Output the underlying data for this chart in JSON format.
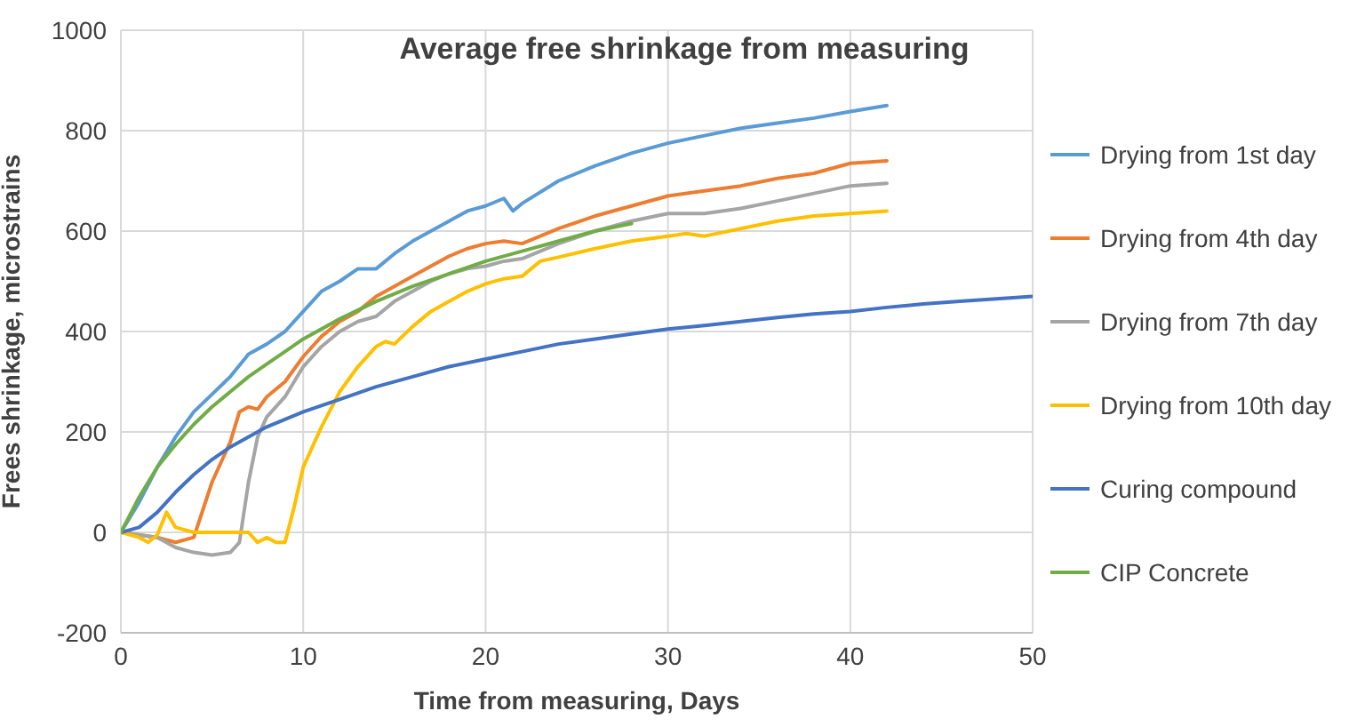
{
  "chart_data": {
    "type": "line",
    "title": "Average free shrinkage from measuring",
    "xlabel": "Time from measuring, Days",
    "ylabel": "Frees shrinkage, microstrains",
    "xlim": [
      0,
      50
    ],
    "xticks": [
      0,
      10,
      20,
      30,
      40,
      50
    ],
    "ylim": [
      -200,
      1000
    ],
    "yticks": [
      -200,
      0,
      200,
      400,
      600,
      800,
      1000
    ],
    "grid": true,
    "legend": "right",
    "marker": "none",
    "line_style": "solid",
    "series": [
      {
        "name": "Drying from 1st day",
        "color": "#5b9bd5",
        "x": [
          0,
          1,
          2,
          3,
          4,
          5,
          6,
          7,
          8,
          9,
          10,
          11,
          12,
          13,
          14,
          15,
          16,
          17,
          18,
          19,
          20,
          21,
          21.5,
          22,
          24,
          26,
          28,
          30,
          32,
          34,
          36,
          38,
          40,
          42
        ],
        "values": [
          0,
          60,
          130,
          190,
          240,
          275,
          310,
          355,
          375,
          400,
          440,
          480,
          500,
          525,
          525,
          555,
          580,
          600,
          620,
          640,
          650,
          665,
          640,
          655,
          700,
          730,
          755,
          775,
          790,
          805,
          815,
          825,
          838,
          850
        ]
      },
      {
        "name": "Drying from 4th day",
        "color": "#ed7d31",
        "x": [
          0,
          2,
          3,
          4,
          5,
          6,
          6.5,
          7,
          7.5,
          8,
          9,
          10,
          11,
          12,
          13,
          14,
          15,
          16,
          17,
          18,
          19,
          20,
          21,
          22,
          24,
          26,
          28,
          30,
          32,
          34,
          36,
          38,
          40,
          42
        ],
        "values": [
          0,
          -10,
          -20,
          -10,
          100,
          180,
          240,
          250,
          245,
          270,
          300,
          350,
          390,
          420,
          440,
          470,
          490,
          510,
          530,
          550,
          565,
          575,
          580,
          575,
          605,
          630,
          650,
          670,
          680,
          690,
          705,
          715,
          735,
          740
        ]
      },
      {
        "name": "Drying from 7th day",
        "color": "#a5a5a5",
        "x": [
          0,
          2,
          3,
          4,
          5,
          6,
          6.5,
          7,
          7.5,
          8,
          9,
          10,
          11,
          12,
          13,
          14,
          15,
          16,
          17,
          18,
          19,
          20,
          21,
          22,
          24,
          26,
          28,
          30,
          32,
          34,
          36,
          38,
          40,
          42
        ],
        "values": [
          0,
          -10,
          -30,
          -40,
          -45,
          -40,
          -20,
          100,
          190,
          230,
          270,
          330,
          370,
          400,
          420,
          430,
          460,
          480,
          500,
          515,
          525,
          530,
          540,
          545,
          575,
          600,
          620,
          635,
          635,
          645,
          660,
          675,
          690,
          695
        ]
      },
      {
        "name": "Drying from 10th day",
        "color": "#ffc000",
        "x": [
          0,
          1,
          1.5,
          2,
          2.5,
          3,
          4,
          6,
          7,
          7.5,
          8,
          8.5,
          9,
          9.5,
          10,
          11,
          12,
          13,
          14,
          14.5,
          15,
          16,
          17,
          18,
          19,
          20,
          21,
          22,
          23,
          24,
          26,
          28,
          30,
          31,
          32,
          34,
          36,
          38,
          40,
          42
        ],
        "values": [
          0,
          -10,
          -20,
          -5,
          40,
          10,
          0,
          0,
          0,
          -20,
          -10,
          -20,
          -20,
          50,
          130,
          210,
          280,
          330,
          370,
          380,
          375,
          410,
          440,
          460,
          480,
          495,
          505,
          510,
          540,
          548,
          565,
          580,
          590,
          595,
          590,
          605,
          620,
          630,
          635,
          640
        ]
      },
      {
        "name": "Curing compound",
        "color": "#4472c4",
        "x": [
          0,
          1,
          2,
          3,
          4,
          5,
          6,
          8,
          10,
          12,
          14,
          16,
          18,
          20,
          22,
          24,
          26,
          28,
          30,
          32,
          34,
          36,
          38,
          40,
          42,
          44,
          46,
          48,
          50
        ],
        "values": [
          0,
          10,
          40,
          80,
          115,
          145,
          170,
          210,
          240,
          265,
          290,
          310,
          330,
          345,
          360,
          375,
          385,
          395,
          405,
          412,
          420,
          428,
          435,
          440,
          448,
          455,
          460,
          465,
          470
        ]
      },
      {
        "name": "CIP Concrete",
        "color": "#70ad47",
        "x": [
          0,
          1,
          2,
          3,
          4,
          5,
          6,
          7,
          8,
          9,
          10,
          12,
          14,
          16,
          18,
          20,
          22,
          24,
          26,
          28
        ],
        "values": [
          0,
          70,
          130,
          175,
          215,
          250,
          280,
          310,
          335,
          360,
          385,
          425,
          460,
          490,
          515,
          540,
          560,
          580,
          600,
          615
        ]
      }
    ]
  }
}
